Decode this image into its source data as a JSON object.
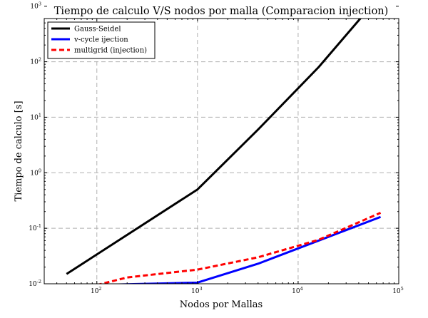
{
  "chart_data": {
    "type": "line",
    "title": "Tiempo de calculo V/S nodos por malla (Comparacion injection)",
    "xlabel": "Nodos por Mallas",
    "ylabel": "Tiempo de calculo [s]",
    "xscale": "log",
    "yscale": "log",
    "xlim": [
      30,
      100000
    ],
    "ylim": [
      0.01,
      600
    ],
    "grid": true,
    "legend_position": "top-left",
    "xticks": [
      {
        "base": "10",
        "exp": "2",
        "value": 100
      },
      {
        "base": "10",
        "exp": "3",
        "value": 1000
      },
      {
        "base": "10",
        "exp": "4",
        "value": 10000
      },
      {
        "base": "10",
        "exp": "5",
        "value": 100000
      }
    ],
    "yticks": [
      {
        "base": "10",
        "exp": "-2",
        "value": 0.01
      },
      {
        "base": "10",
        "exp": "-1",
        "value": 0.1
      },
      {
        "base": "10",
        "exp": "0",
        "value": 1
      },
      {
        "base": "10",
        "exp": "1",
        "value": 10
      },
      {
        "base": "10",
        "exp": "2",
        "value": 100
      },
      {
        "base": "10",
        "exp": "3",
        "value": 1000
      }
    ],
    "series": [
      {
        "name": "Gauss-Seidel",
        "color": "#000000",
        "style": "solid",
        "x": [
          50,
          1000,
          4000,
          16000,
          66000
        ],
        "y": [
          0.015,
          0.5,
          6,
          80,
          1600
        ]
      },
      {
        "name": "v-cycle ijection",
        "color": "#0000ff",
        "style": "solid",
        "x": [
          100,
          1000,
          4000,
          16000,
          66000
        ],
        "y": [
          0.0095,
          0.0105,
          0.023,
          0.06,
          0.16
        ]
      },
      {
        "name": "multigrid (injection)",
        "color": "#ff0000",
        "style": "dashed",
        "x": [
          100,
          200,
          1000,
          4000,
          16000,
          66000
        ],
        "y": [
          0.0095,
          0.013,
          0.018,
          0.03,
          0.062,
          0.19
        ]
      }
    ]
  }
}
